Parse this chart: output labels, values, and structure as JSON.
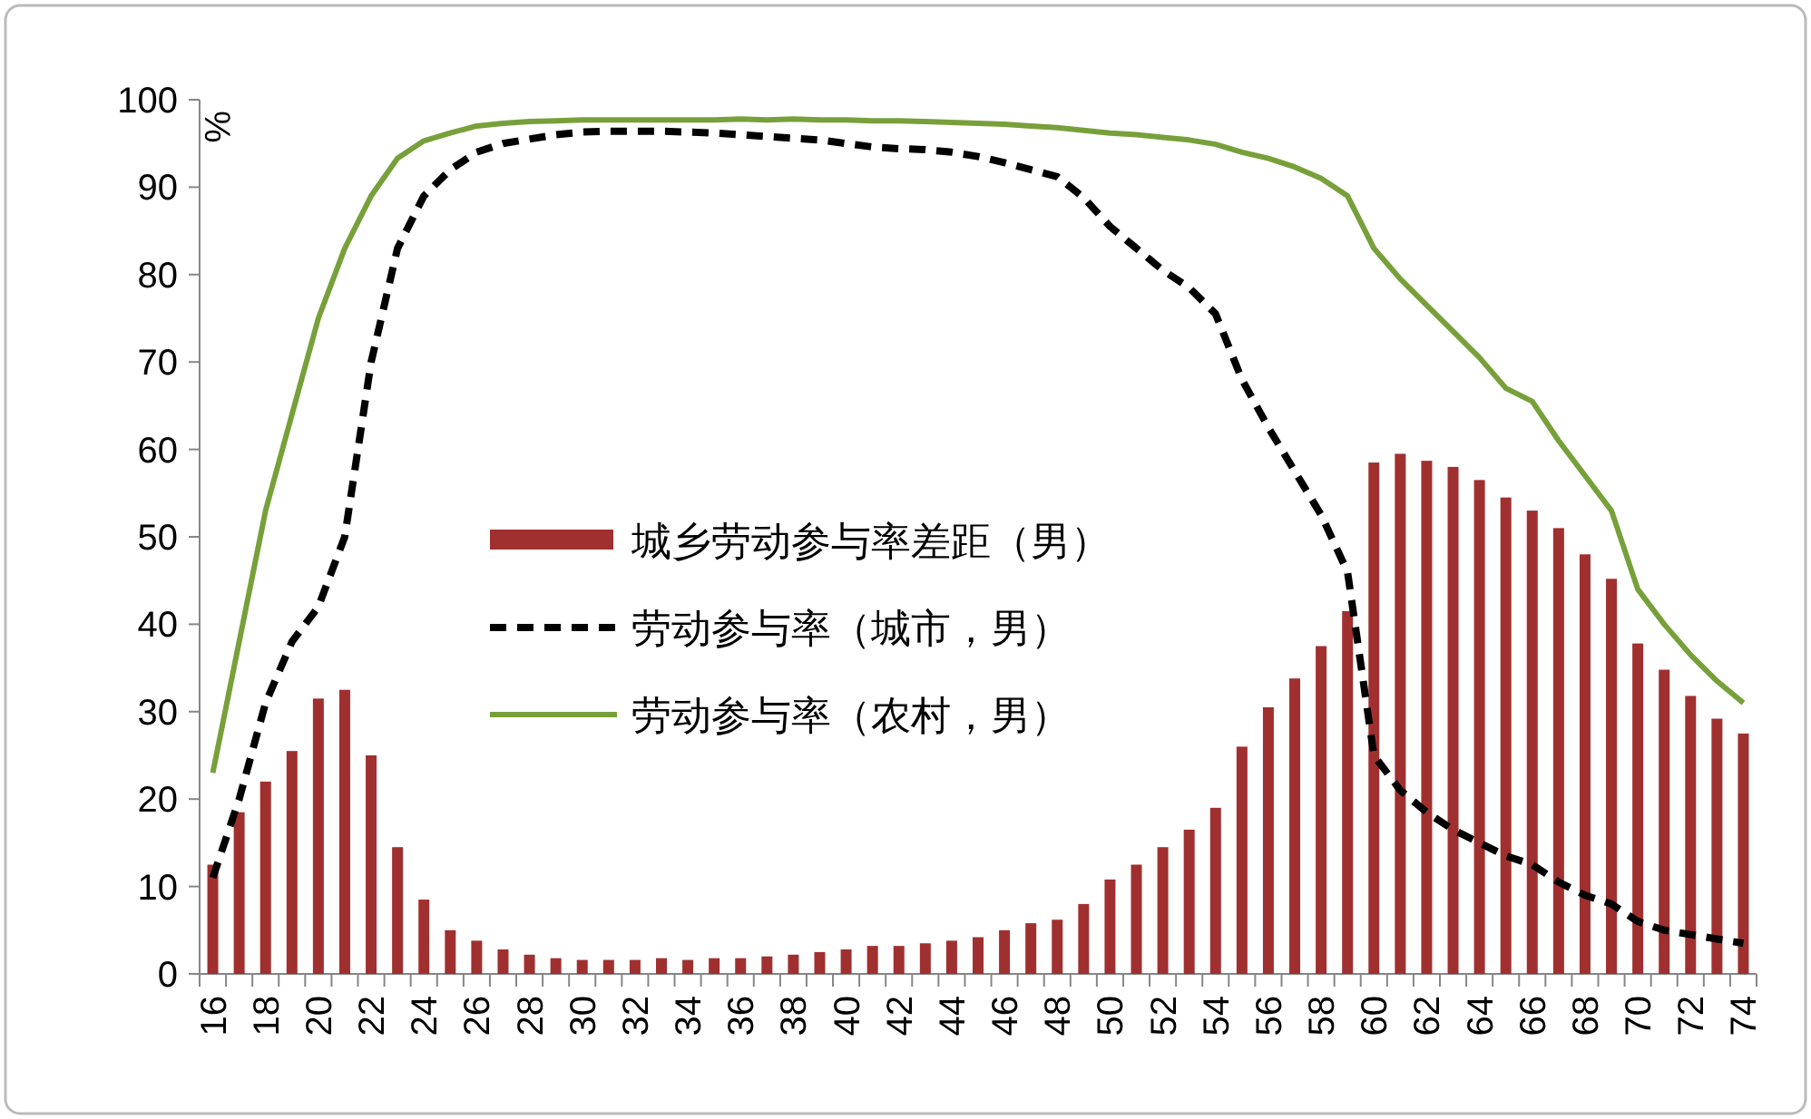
{
  "chart_data": {
    "type": "bar",
    "ylabel": "%",
    "categories": [
      "16",
      null,
      "18",
      null,
      "20",
      null,
      "22",
      null,
      "24",
      null,
      "26",
      null,
      "28",
      null,
      "30",
      null,
      "32",
      null,
      "34",
      null,
      "36",
      null,
      "38",
      null,
      "40",
      null,
      "42",
      null,
      "44",
      null,
      "46",
      null,
      "48",
      null,
      "50",
      null,
      "52",
      null,
      "54",
      null,
      "56",
      null,
      "58",
      null,
      "60",
      null,
      "62",
      null,
      "64",
      null,
      "66",
      null,
      "68",
      null,
      "70",
      null,
      "72",
      null,
      "74"
    ],
    "ylim": [
      0,
      100
    ],
    "yticks": [
      0,
      10,
      20,
      30,
      40,
      50,
      60,
      70,
      80,
      90,
      100
    ],
    "grid": false,
    "legend": "center",
    "marker": "none",
    "series": [
      {
        "name": "城乡劳动参与率差距（男）",
        "color": "#a0302f",
        "values": [
          12.5,
          18.5,
          22,
          25.5,
          31.5,
          32.5,
          25,
          14.5,
          8.5,
          5,
          3.8,
          2.8,
          2.2,
          1.8,
          1.6,
          1.6,
          1.6,
          1.8,
          1.6,
          1.8,
          1.8,
          2,
          2.2,
          2.5,
          2.8,
          3.2,
          3.2,
          3.5,
          3.8,
          4.2,
          5,
          5.8,
          6.2,
          8,
          10.8,
          12.5,
          14.5,
          16.5,
          19,
          26,
          30.5,
          33.8,
          37.5,
          41.5,
          58.5,
          59.5,
          58.7,
          58,
          56.5,
          54.5,
          53,
          51,
          48,
          45.2,
          37.8,
          34.8,
          31.8,
          29.2,
          27.5
        ]
      },
      {
        "name": "劳动参与率（城市，男）",
        "type": "line",
        "line_style": "dashed",
        "color": "#000000",
        "values": [
          11,
          20,
          31,
          38,
          42,
          50,
          70,
          83,
          89,
          92,
          94,
          95,
          95.5,
          96,
          96.3,
          96.4,
          96.4,
          96.4,
          96.3,
          96.2,
          96,
          95.8,
          95.6,
          95.4,
          95,
          94.6,
          94.4,
          94.3,
          94,
          93.5,
          92.8,
          92,
          91.2,
          88.8,
          85.5,
          83,
          80.5,
          78.5,
          75.5,
          68,
          62.5,
          57.5,
          52.5,
          46,
          25,
          21,
          18.5,
          16.5,
          15,
          13.5,
          12.5,
          10.5,
          9,
          8,
          6,
          5,
          4.5,
          4,
          3.5
        ]
      },
      {
        "name": "劳动参与率（农村，男）",
        "type": "line",
        "line_style": "solid",
        "color": "#77a03a",
        "values": [
          23,
          38,
          53,
          64,
          75,
          83,
          89,
          93.3,
          95.3,
          96.2,
          97,
          97.3,
          97.5,
          97.6,
          97.7,
          97.7,
          97.7,
          97.7,
          97.7,
          97.7,
          97.8,
          97.7,
          97.8,
          97.7,
          97.7,
          97.6,
          97.6,
          97.5,
          97.4,
          97.3,
          97.2,
          97,
          96.8,
          96.5,
          96.2,
          96,
          95.7,
          95.4,
          94.9,
          94,
          93.3,
          92.3,
          91,
          89,
          83,
          79.5,
          76.5,
          73.5,
          70.5,
          67,
          65.5,
          61,
          57,
          53,
          44,
          40,
          36.5,
          33.5,
          31
        ]
      }
    ]
  }
}
